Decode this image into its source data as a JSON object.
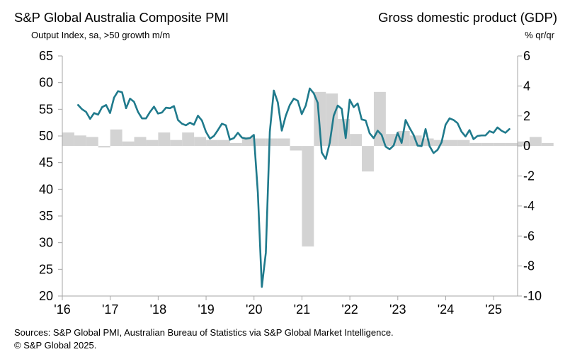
{
  "header": {
    "left_title": "S&P Global Australia Composite PMI",
    "left_subtitle": "Output  Index, sa, >50 growth m/m",
    "right_title": "Gross domestic product (GDP)",
    "right_subtitle": "% qr/qr"
  },
  "footer": {
    "sources": "Sources: S&P Global PMI, Australian Bureau of Statistics via S&P Global Market Intelligence.",
    "copyright": "© S&P Global 2025."
  },
  "colors": {
    "pmi_line": "#1f7a8c",
    "gdp_bars": "#d3d3d3",
    "axis": "#a6a6a6",
    "text": "#000000"
  },
  "chart_data": {
    "type": "bar+line",
    "title": "S&P Global Australia Composite PMI / Gross domestic product (GDP)",
    "x_start": 2016.0,
    "x_end": 2025.5,
    "x_tick_labels": [
      "'16",
      "'17",
      "'18",
      "'19",
      "'20",
      "'21",
      "'22",
      "'23",
      "'24",
      "'25"
    ],
    "y_left": {
      "label": "Output Index, sa, >50 growth m/m",
      "min": 20,
      "max": 65,
      "step": 5,
      "tick_labels": [
        "65",
        "60",
        "55",
        "50",
        "45",
        "40",
        "35",
        "30",
        "25",
        "20"
      ]
    },
    "y_right": {
      "label": "% qr/qr",
      "min": -10,
      "max": 6,
      "step": 2,
      "tick_labels": [
        "6",
        "4",
        "2",
        "0",
        "-2",
        "-4",
        "-6",
        "-8",
        "-10"
      ]
    },
    "series": [
      {
        "name": "GDP % q/q",
        "type": "bar",
        "axis": "right",
        "x_start": 2016.0,
        "step": 0.25,
        "values": [
          0.9,
          0.7,
          0.6,
          -0.1,
          1.1,
          0.3,
          0.6,
          0.4,
          0.9,
          0.4,
          0.9,
          0.6,
          0.4,
          0.4,
          0.2,
          0.6,
          0.5,
          0.5,
          0.5,
          -0.3,
          -6.7,
          3.6,
          3.5,
          1.8,
          0.8,
          -1.7,
          3.6,
          0.8,
          1.0,
          0.7,
          0.5,
          0.4,
          0.4,
          0.4,
          0.2,
          0.2,
          0.2,
          0.2,
          0.3,
          0.6,
          0.2
        ]
      },
      {
        "name": "S&P Global Australia Composite PMI",
        "type": "line",
        "axis": "left",
        "x_start": 2016.33,
        "step": 0.08333,
        "values": [
          55.8,
          55.0,
          54.5,
          53.2,
          54.3,
          54.0,
          55.4,
          55.8,
          54.3,
          57.2,
          58.4,
          58.2,
          55.2,
          57.0,
          56.4,
          54.5,
          53.3,
          53.3,
          54.5,
          55.5,
          54.2,
          54.4,
          55.3,
          55.2,
          55.6,
          53.0,
          52.3,
          52.0,
          52.5,
          52.1,
          53.8,
          52.9,
          50.8,
          49.5,
          50.0,
          51.1,
          52.3,
          52.0,
          49.3,
          49.6,
          50.6,
          49.7,
          49.5,
          49.6,
          50.2,
          39.4,
          21.7,
          28.1,
          50.8,
          58.5,
          56.3,
          51.0,
          53.8,
          55.8,
          57.0,
          56.6,
          54.1,
          55.7,
          58.9,
          58.0,
          56.2,
          46.9,
          45.7,
          48.7,
          53.8,
          55.7,
          55.1,
          49.6,
          56.8,
          55.4,
          56.1,
          53.1,
          52.9,
          50.5,
          49.6,
          51.0,
          50.2,
          48.0,
          47.5,
          48.2,
          50.6,
          48.7,
          53.0,
          51.5,
          50.2,
          48.2,
          48.1,
          51.3,
          48.1,
          46.8,
          47.4,
          48.8,
          52.1,
          53.3,
          53.0,
          52.4,
          50.8,
          49.9,
          51.1,
          49.4,
          50.0,
          50.1,
          50.1,
          50.9,
          50.6,
          51.6,
          51.0,
          50.6,
          51.3
        ]
      }
    ]
  }
}
